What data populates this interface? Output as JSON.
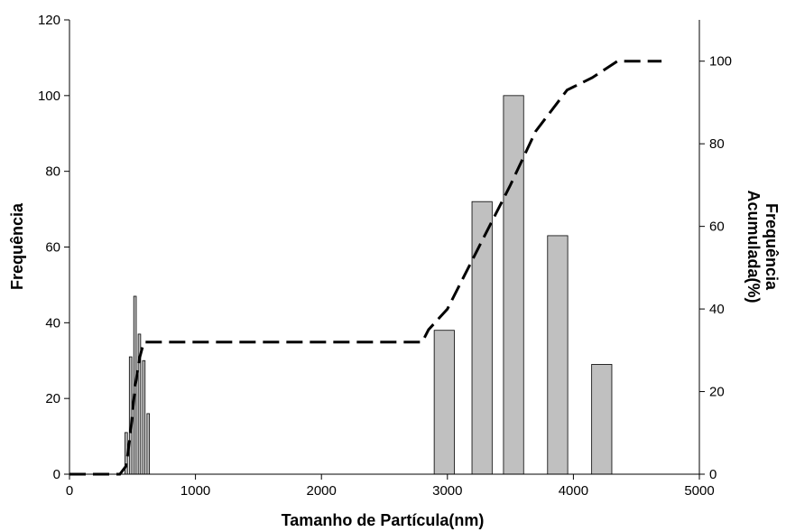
{
  "chart_data": {
    "type": "bar",
    "xlabel": "Tamanho de Partícula(nm)",
    "ylabel": "Frequência",
    "y2label_line1": "Frequência",
    "y2label_line2": "Acumulada(%)",
    "xlim": [
      0,
      5000
    ],
    "ylim": [
      0,
      120
    ],
    "y2lim": [
      0,
      110
    ],
    "xticks": [
      "0",
      "1000",
      "2000",
      "3000",
      "4000",
      "5000"
    ],
    "yticks": [
      "0",
      "20",
      "40",
      "60",
      "80",
      "100",
      "120"
    ],
    "y2ticks": [
      "0",
      "20",
      "40",
      "60",
      "80",
      "100"
    ],
    "grid": false,
    "legend": "none",
    "bar_color": "#c0c0c0",
    "bars": [
      {
        "x": 450,
        "width": 20,
        "value": 11
      },
      {
        "x": 485,
        "width": 20,
        "value": 31
      },
      {
        "x": 520,
        "width": 20,
        "value": 47
      },
      {
        "x": 555,
        "width": 20,
        "value": 37
      },
      {
        "x": 590,
        "width": 20,
        "value": 30
      },
      {
        "x": 625,
        "width": 20,
        "value": 16
      },
      {
        "x": 2975,
        "width": 160,
        "value": 38
      },
      {
        "x": 3275,
        "width": 160,
        "value": 72
      },
      {
        "x": 3525,
        "width": 160,
        "value": 100
      },
      {
        "x": 3875,
        "width": 160,
        "value": 63
      },
      {
        "x": 4225,
        "width": 160,
        "value": 29
      }
    ],
    "cumulative": {
      "axis": "y2",
      "style": "dashed",
      "x": [
        0,
        400,
        450,
        485,
        520,
        555,
        590,
        625,
        2800,
        2850,
        3000,
        3200,
        3500,
        3700,
        3950,
        4150,
        4350,
        4700
      ],
      "y": [
        0,
        0,
        2,
        10,
        21,
        28,
        32,
        32,
        32,
        35,
        40,
        52,
        70,
        83,
        93,
        96,
        100,
        100
      ]
    }
  }
}
